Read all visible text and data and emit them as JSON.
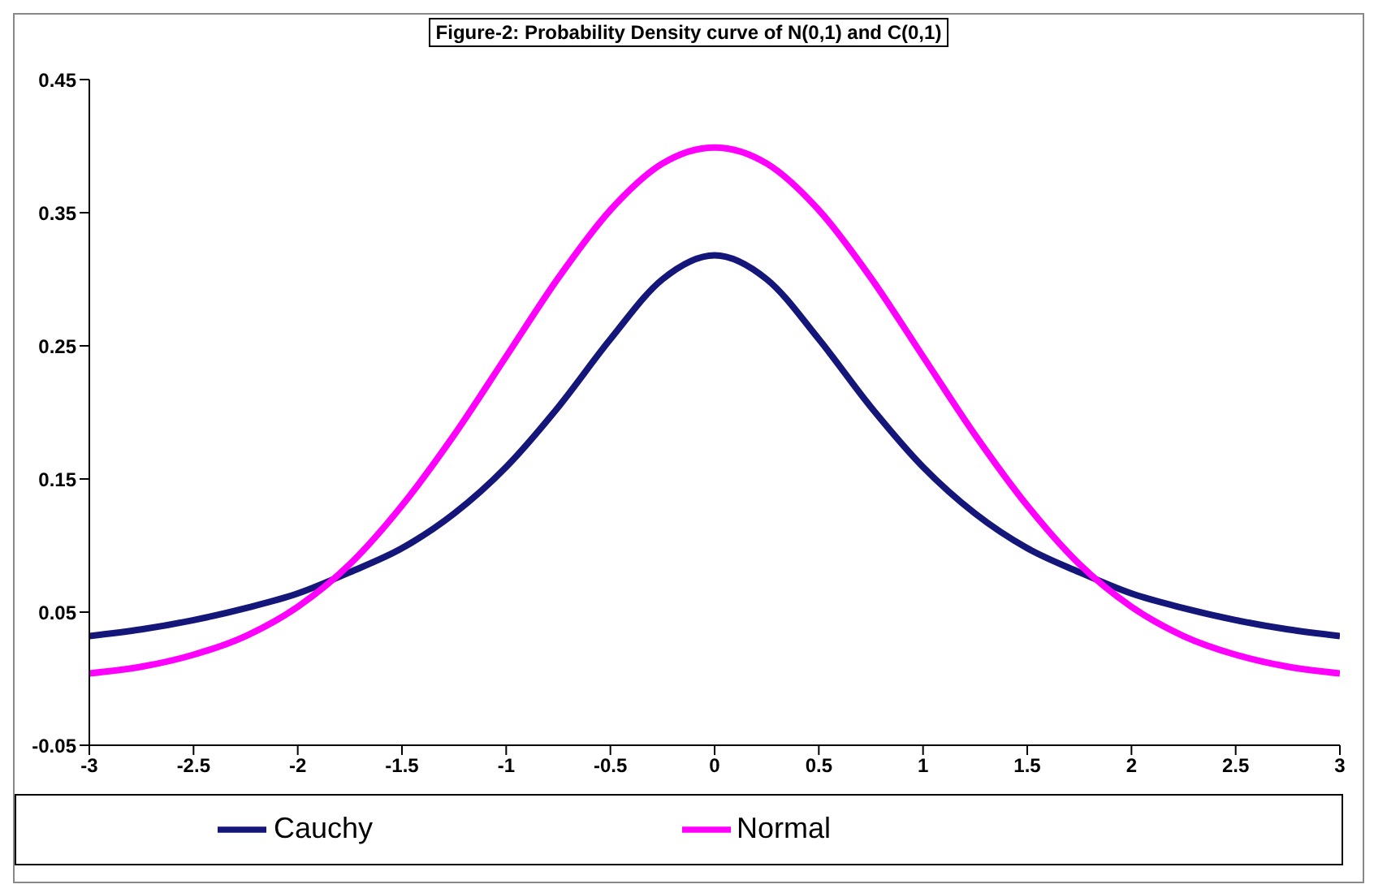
{
  "chart_data": {
    "type": "line",
    "title": "Figure-2: Probability Density curve of N(0,1) and C(0,1)",
    "x": [
      -3,
      -2.75,
      -2.5,
      -2.25,
      -2,
      -1.75,
      -1.5,
      -1.25,
      -1,
      -0.75,
      -0.5,
      -0.25,
      0,
      0.25,
      0.5,
      0.75,
      1,
      1.25,
      1.5,
      1.75,
      2,
      2.25,
      2.5,
      2.75,
      3
    ],
    "series": [
      {
        "name": "Cauchy",
        "color": "#14167a",
        "values": [
          0.032,
          0.037,
          0.044,
          0.053,
          0.064,
          0.08,
          0.098,
          0.124,
          0.159,
          0.204,
          0.255,
          0.3,
          0.318,
          0.3,
          0.255,
          0.204,
          0.159,
          0.124,
          0.098,
          0.08,
          0.064,
          0.053,
          0.044,
          0.037,
          0.032
        ]
      },
      {
        "name": "Normal",
        "color": "#ff00ff",
        "values": [
          0.004,
          0.009,
          0.018,
          0.032,
          0.054,
          0.086,
          0.13,
          0.183,
          0.242,
          0.301,
          0.352,
          0.387,
          0.399,
          0.387,
          0.352,
          0.301,
          0.242,
          0.183,
          0.13,
          0.086,
          0.054,
          0.032,
          0.018,
          0.009,
          0.004
        ]
      }
    ],
    "xlim": [
      -3,
      3
    ],
    "xticks": [
      -3,
      -2.5,
      -2,
      -1.5,
      -1,
      -0.5,
      0,
      0.5,
      1,
      1.5,
      2,
      2.5,
      3
    ],
    "ylim": [
      -0.05,
      0.45
    ],
    "yticks": [
      -0.05,
      0.05,
      0.15,
      0.25,
      0.35,
      0.45
    ],
    "grid": false,
    "legend": "bottom",
    "marker": "none",
    "line_style": "solid"
  }
}
